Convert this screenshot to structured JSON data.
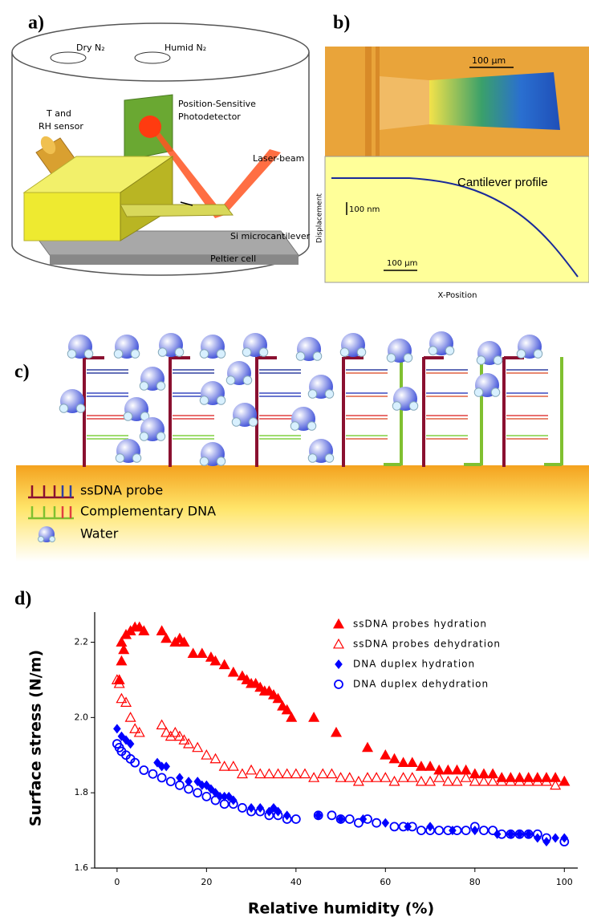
{
  "labels": {
    "a": "a)",
    "b": "b)",
    "c": "c)",
    "d": "d)"
  },
  "panel_a": {
    "dry_n2": "Dry N₂",
    "humid_n2": "Humid N₂",
    "sensor": [
      "T and",
      "RH sensor"
    ],
    "detector": [
      "Position-Sensitive",
      "Photodetector"
    ],
    "laser": "Laser-beam",
    "cantilever": "Si microcantilever",
    "peltier": "Peltier cell"
  },
  "panel_b": {
    "image_scale": "100 µm",
    "profile_title": "Cantilever profile",
    "vertical_scale": "100 nm",
    "horizontal_scale": "100 µm",
    "y_label": "Displacement",
    "x_label": "X-Position"
  },
  "panel_c": {
    "legend": [
      "ssDNA probe",
      "Complementary DNA",
      "Water"
    ]
  },
  "chart_data": {
    "type": "scatter",
    "x_label": "Relative humidity (%)",
    "y_label": "Surface stress (N/m)",
    "xlim": [
      -5,
      103
    ],
    "ylim": [
      1.6,
      2.28
    ],
    "xticks": [
      0,
      20,
      40,
      60,
      80,
      100
    ],
    "yticks": [
      1.6,
      1.8,
      {
        "value": 2,
        "label": "2.0"
      },
      2.2
    ],
    "legend": "top-right",
    "series": [
      {
        "name": "ssDNA probes hydration",
        "color": "#ff0000",
        "marker": "triangle",
        "x": [
          0.5,
          1,
          1.5,
          1,
          2,
          3,
          4,
          5,
          6,
          10,
          11,
          13,
          14,
          15,
          17,
          19,
          21,
          22,
          24,
          26,
          28,
          29,
          30,
          31,
          32,
          33,
          34,
          35,
          36,
          37,
          38,
          39,
          44,
          49,
          56,
          60,
          62,
          64,
          66,
          68,
          70,
          72,
          74,
          76,
          78,
          80,
          82,
          84,
          86,
          88,
          90,
          92,
          94,
          96,
          98,
          100
        ],
        "values": [
          2.1,
          2.15,
          2.18,
          2.2,
          2.22,
          2.23,
          2.24,
          2.24,
          2.23,
          2.23,
          2.21,
          2.2,
          2.21,
          2.2,
          2.17,
          2.17,
          2.16,
          2.15,
          2.14,
          2.12,
          2.11,
          2.1,
          2.09,
          2.09,
          2.08,
          2.07,
          2.07,
          2.06,
          2.05,
          2.03,
          2.02,
          2.0,
          2.0,
          1.96,
          1.92,
          1.9,
          1.89,
          1.88,
          1.88,
          1.87,
          1.87,
          1.86,
          1.86,
          1.86,
          1.86,
          1.85,
          1.85,
          1.85,
          1.84,
          1.84,
          1.84,
          1.84,
          1.84,
          1.84,
          1.84,
          1.83
        ]
      },
      {
        "name": "ssDNA probes dehydration",
        "color": "#ff0000",
        "marker": "open-triangle",
        "x": [
          0,
          0.5,
          1,
          2,
          3,
          4,
          5,
          10,
          11,
          12,
          13,
          14,
          15,
          16,
          18,
          20,
          22,
          24,
          26,
          28,
          30,
          32,
          34,
          36,
          38,
          40,
          42,
          44,
          46,
          48,
          50,
          52,
          54,
          56,
          58,
          60,
          62,
          64,
          66,
          68,
          70,
          72,
          74,
          76,
          78,
          80,
          82,
          84,
          86,
          88,
          90,
          92,
          94,
          96,
          98,
          100
        ],
        "values": [
          2.1,
          2.09,
          2.05,
          2.04,
          2.0,
          1.97,
          1.96,
          1.98,
          1.96,
          1.95,
          1.96,
          1.95,
          1.94,
          1.93,
          1.92,
          1.9,
          1.89,
          1.87,
          1.87,
          1.85,
          1.86,
          1.85,
          1.85,
          1.85,
          1.85,
          1.85,
          1.85,
          1.84,
          1.85,
          1.85,
          1.84,
          1.84,
          1.83,
          1.84,
          1.84,
          1.84,
          1.83,
          1.84,
          1.84,
          1.83,
          1.83,
          1.84,
          1.83,
          1.83,
          1.84,
          1.83,
          1.83,
          1.83,
          1.83,
          1.83,
          1.83,
          1.83,
          1.83,
          1.83,
          1.82,
          1.83
        ]
      },
      {
        "name": "DNA duplex hydration",
        "color": "#0000ff",
        "marker": "diamond",
        "x": [
          0,
          1,
          2,
          3,
          9,
          10,
          11,
          14,
          16,
          18,
          19,
          20,
          21,
          22,
          23,
          24,
          25,
          26,
          30,
          32,
          34,
          35,
          36,
          38,
          45,
          50,
          55,
          60,
          65,
          70,
          75,
          80,
          85,
          88,
          90,
          92,
          94,
          96,
          98,
          100
        ],
        "values": [
          1.97,
          1.95,
          1.94,
          1.93,
          1.88,
          1.87,
          1.87,
          1.84,
          1.83,
          1.83,
          1.82,
          1.82,
          1.81,
          1.8,
          1.79,
          1.79,
          1.79,
          1.78,
          1.76,
          1.76,
          1.75,
          1.76,
          1.75,
          1.74,
          1.74,
          1.73,
          1.73,
          1.72,
          1.71,
          1.71,
          1.7,
          1.7,
          1.69,
          1.69,
          1.69,
          1.69,
          1.68,
          1.67,
          1.68,
          1.68
        ]
      },
      {
        "name": "DNA duplex dehydration",
        "color": "#0000ff",
        "marker": "open-circle",
        "x": [
          0,
          0.5,
          1,
          2,
          3,
          4,
          6,
          8,
          10,
          12,
          14,
          16,
          18,
          20,
          22,
          24,
          26,
          28,
          30,
          32,
          34,
          36,
          38,
          40,
          45,
          48,
          50,
          52,
          54,
          56,
          58,
          62,
          64,
          66,
          68,
          70,
          72,
          74,
          76,
          78,
          80,
          82,
          84,
          86,
          88,
          90,
          92,
          94,
          96,
          100
        ],
        "values": [
          1.93,
          1.92,
          1.91,
          1.9,
          1.89,
          1.88,
          1.86,
          1.85,
          1.84,
          1.83,
          1.82,
          1.81,
          1.8,
          1.79,
          1.78,
          1.77,
          1.77,
          1.76,
          1.75,
          1.75,
          1.74,
          1.74,
          1.73,
          1.73,
          1.74,
          1.74,
          1.73,
          1.73,
          1.72,
          1.73,
          1.72,
          1.71,
          1.71,
          1.71,
          1.7,
          1.7,
          1.7,
          1.7,
          1.7,
          1.7,
          1.71,
          1.7,
          1.7,
          1.69,
          1.69,
          1.69,
          1.69,
          1.69,
          1.68,
          1.67
        ]
      }
    ]
  }
}
